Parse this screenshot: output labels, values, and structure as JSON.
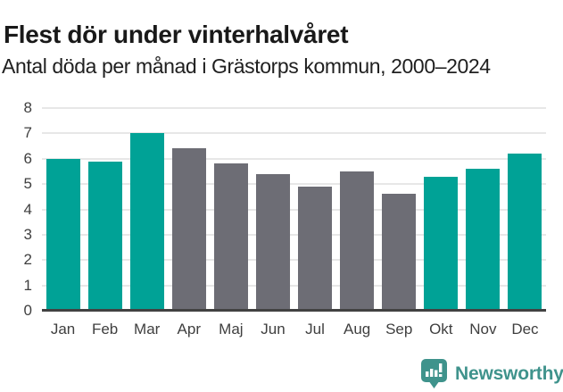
{
  "header": {
    "title": "Flest dör under vinterhalvåret",
    "subtitle": "Antal döda per månad i Grästorps kommun, 2000–2024"
  },
  "chart_data": {
    "type": "bar",
    "title": "Flest dör under vinterhalvåret",
    "subtitle": "Antal döda per månad i Grästorps kommun, 2000–2024",
    "categories": [
      "Jan",
      "Feb",
      "Mar",
      "Apr",
      "Maj",
      "Jun",
      "Jul",
      "Aug",
      "Sep",
      "Okt",
      "Nov",
      "Dec"
    ],
    "values": [
      6.0,
      5.9,
      7.0,
      6.4,
      5.8,
      5.4,
      4.9,
      5.5,
      4.6,
      5.3,
      5.6,
      6.2
    ],
    "bar_roles": [
      "highlight",
      "highlight",
      "highlight",
      "default",
      "default",
      "default",
      "default",
      "default",
      "default",
      "highlight",
      "highlight",
      "highlight"
    ],
    "colors": {
      "highlight": "#00a296",
      "default": "#6d6d75"
    },
    "xlabel": "",
    "ylabel": "",
    "ylim": [
      0,
      8
    ],
    "yticks": [
      0,
      1,
      2,
      3,
      4,
      5,
      6,
      7,
      8
    ],
    "grid": true,
    "legend": false
  },
  "footer": {
    "brand": "Newsworthy",
    "icon": "newsworthy-badge-icon",
    "brand_color": "#3f938c"
  }
}
